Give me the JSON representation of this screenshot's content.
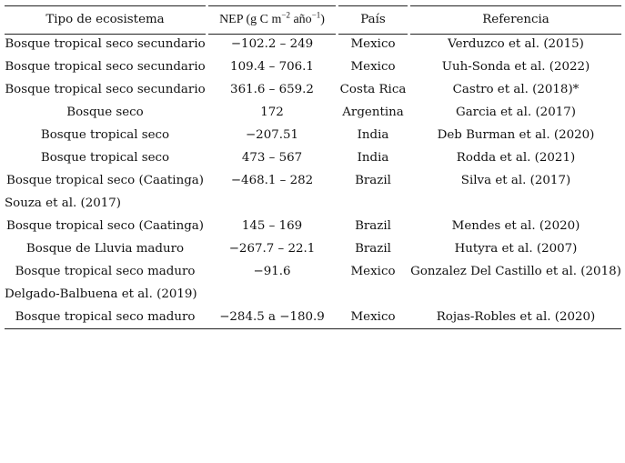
{
  "table": {
    "headers": {
      "ecosystem": "Tipo de ecosistema",
      "nep_prefix": "NEP (g C m",
      "nep_exp1": "−2",
      "nep_mid": " año",
      "nep_exp2": "−1",
      "nep_suffix": ")",
      "country": "País",
      "reference": "Referencia"
    },
    "rows": [
      {
        "ecosystem": "Bosque tropical seco secundario",
        "nep": "−102.2 – 249",
        "country": "Mexico",
        "reference": "Verduzco et al. (2015)"
      },
      {
        "ecosystem": "Bosque tropical seco secundario",
        "nep": "109.4 – 706.1",
        "country": "Mexico",
        "reference": "Uuh-Sonda et al. (2022)"
      },
      {
        "ecosystem": "Bosque tropical seco secundario",
        "nep": "361.6 – 659.2",
        "country": "Costa Rica",
        "reference": "Castro et al. (2018)*"
      },
      {
        "ecosystem": "Bosque seco",
        "nep": "172",
        "country": "Argentina",
        "reference": "Garcia et al. (2017)"
      },
      {
        "ecosystem": "Bosque tropical seco",
        "nep": "−207.51",
        "country": "India",
        "reference": "Deb Burman et al. (2020)"
      },
      {
        "ecosystem": "Bosque tropical seco",
        "nep": "473 – 567",
        "country": "India",
        "reference": "Rodda et al. (2021)"
      },
      {
        "ecosystem": "Bosque tropical seco (Caatinga)",
        "nep": "−468.1 – 282",
        "country": "Brazil",
        "reference": "Silva et al. (2017)"
      },
      {
        "orphan": "Souza et al. (2017)"
      },
      {
        "ecosystem": "Bosque tropical seco (Caatinga)",
        "nep": "145 – 169",
        "country": "Brazil",
        "reference": "Mendes et al. (2020)"
      },
      {
        "ecosystem": "Bosque de Lluvia maduro",
        "nep": "−267.7 – 22.1",
        "country": "Brazil",
        "reference": "Hutyra et al. (2007)"
      },
      {
        "ecosystem": "Bosque tropical seco maduro",
        "nep": "−91.6",
        "country": "Mexico",
        "reference": "Gonzalez Del Castillo et al. (2018)"
      },
      {
        "orphan": "Delgado-Balbuena et al. (2019)"
      },
      {
        "ecosystem": "Bosque tropical seco maduro",
        "nep": "−284.5 a −180.9",
        "country": "Mexico",
        "reference": "Rojas-Robles et al. (2020)"
      }
    ]
  }
}
